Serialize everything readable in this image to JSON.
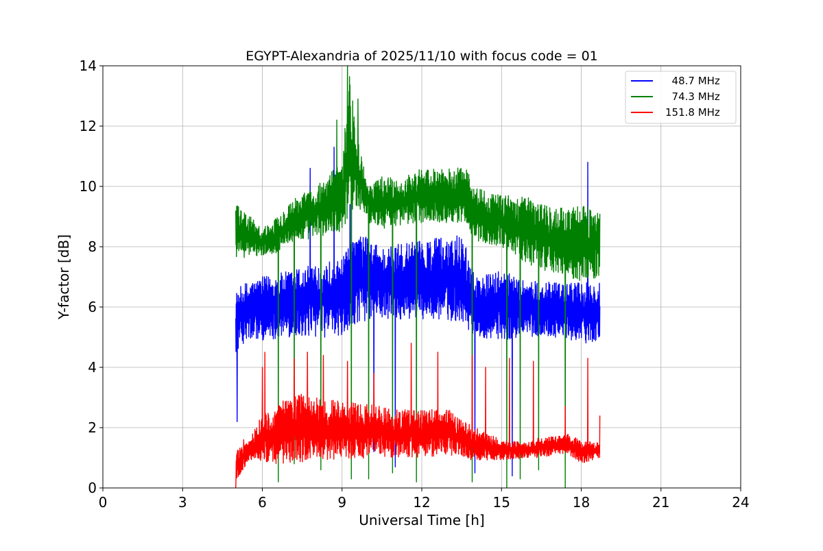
{
  "chart_data": {
    "type": "line",
    "title": "EGYPT-Alexandria of 2025/11/10 with focus code = 01",
    "xlabel": "Universal Time [h]",
    "ylabel": "Y-factor [dB]",
    "xlim": [
      0,
      24
    ],
    "ylim": [
      0,
      14
    ],
    "xticks": [
      "0",
      "3",
      "6",
      "9",
      "12",
      "15",
      "18",
      "21",
      "24"
    ],
    "yticks": [
      "0",
      "2",
      "4",
      "6",
      "8",
      "10",
      "12",
      "14"
    ],
    "grid": true,
    "legend_position": "top-right",
    "series": [
      {
        "name": "  48.7 MHz",
        "color": "#0000ff",
        "x": [
          5.0,
          5.3,
          6.0,
          7.0,
          8.0,
          9.0,
          9.6,
          10.5,
          12.0,
          13.5,
          14.0,
          15.0,
          16.0,
          17.0,
          18.0,
          18.7
        ],
        "band_low": [
          4.5,
          4.8,
          4.9,
          5.0,
          5.0,
          5.0,
          5.5,
          5.6,
          5.6,
          5.5,
          5.0,
          4.9,
          5.0,
          5.0,
          4.8,
          4.8
        ],
        "band_high": [
          6.5,
          6.8,
          7.0,
          7.2,
          7.5,
          7.6,
          8.5,
          8.0,
          8.2,
          8.5,
          7.0,
          7.2,
          6.9,
          6.8,
          6.8,
          6.8
        ],
        "spikes": [
          [
            5.05,
            2.2
          ],
          [
            5.15,
            6.3
          ],
          [
            7.8,
            10.6
          ],
          [
            8.7,
            11.3
          ],
          [
            9.3,
            9.4
          ],
          [
            10.2,
            1.2
          ],
          [
            11.0,
            0.7
          ],
          [
            14.0,
            0.5
          ],
          [
            15.4,
            0.4
          ],
          [
            18.25,
            10.8
          ]
        ]
      },
      {
        "name": "  74.3 MHz",
        "color": "#008000",
        "x": [
          5.0,
          5.2,
          5.6,
          6.0,
          6.6,
          7.0,
          8.0,
          9.0,
          9.3,
          9.6,
          10.0,
          10.6,
          11.0,
          12.0,
          13.0,
          13.6,
          14.0,
          15.0,
          16.0,
          17.0,
          18.0,
          18.7
        ],
        "band_low": [
          7.5,
          7.6,
          7.7,
          7.7,
          7.8,
          8.1,
          8.3,
          8.5,
          9.0,
          9.3,
          8.8,
          8.6,
          8.7,
          8.8,
          8.8,
          8.8,
          8.2,
          8.0,
          7.4,
          7.1,
          6.8,
          7.0
        ],
        "band_high": [
          9.5,
          9.2,
          9.0,
          8.6,
          9.0,
          9.5,
          10.0,
          10.8,
          14.0,
          11.5,
          10.0,
          10.4,
          10.2,
          10.6,
          10.6,
          10.7,
          10.0,
          9.7,
          9.7,
          9.3,
          9.4,
          9.2
        ],
        "spikes": [
          [
            6.6,
            0.2
          ],
          [
            7.2,
            0.8
          ],
          [
            8.2,
            0.6
          ],
          [
            8.8,
            12.2
          ],
          [
            9.2,
            14.0
          ],
          [
            9.35,
            0.3
          ],
          [
            9.6,
            12.9
          ],
          [
            10.0,
            0.3
          ],
          [
            10.9,
            0.5
          ],
          [
            11.8,
            0.2
          ],
          [
            13.9,
            0.2
          ],
          [
            15.2,
            0.0
          ],
          [
            15.7,
            0.3
          ],
          [
            16.4,
            0.6
          ],
          [
            17.4,
            0.0
          ]
        ]
      },
      {
        "name": "151.8 MHz",
        "color": "#ff0000",
        "x": [
          5.0,
          5.5,
          6.0,
          6.5,
          7.0,
          8.0,
          9.0,
          10.0,
          11.0,
          12.0,
          13.0,
          14.0,
          15.0,
          16.0,
          16.5,
          17.0,
          17.5,
          18.0,
          18.7
        ],
        "band_low": [
          0.2,
          0.9,
          0.9,
          0.8,
          0.8,
          0.9,
          0.9,
          1.0,
          1.0,
          1.0,
          1.1,
          0.9,
          0.9,
          1.0,
          1.0,
          1.1,
          1.1,
          0.8,
          1.0
        ],
        "band_high": [
          1.2,
          1.6,
          2.5,
          2.6,
          3.2,
          3.0,
          2.9,
          2.8,
          2.6,
          2.6,
          2.6,
          2.0,
          1.6,
          1.5,
          1.7,
          1.7,
          1.8,
          1.6,
          1.5
        ],
        "spikes": [
          [
            5.0,
            0.0
          ],
          [
            5.3,
            1.6
          ],
          [
            6.0,
            4.0
          ],
          [
            6.1,
            4.5
          ],
          [
            7.2,
            4.3
          ],
          [
            7.7,
            4.5
          ],
          [
            8.3,
            4.4
          ],
          [
            9.2,
            4.2
          ],
          [
            10.2,
            3.8
          ],
          [
            11.6,
            4.8
          ],
          [
            12.6,
            4.5
          ],
          [
            13.9,
            4.4
          ],
          [
            14.4,
            4.0
          ],
          [
            15.3,
            4.3
          ],
          [
            16.2,
            4.2
          ],
          [
            17.4,
            2.7
          ],
          [
            18.25,
            4.3
          ],
          [
            18.7,
            2.4
          ]
        ]
      }
    ]
  }
}
